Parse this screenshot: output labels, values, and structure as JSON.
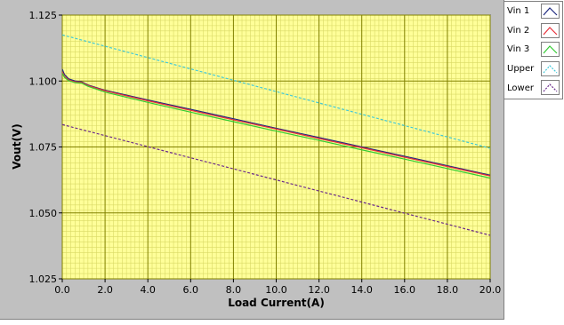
{
  "chart_data": {
    "type": "line",
    "xlabel": "Load Current(A)",
    "ylabel": "Vout(V)",
    "xlim": [
      0,
      20
    ],
    "ylim": [
      1.025,
      1.125
    ],
    "x_ticks": [
      "0.0",
      "2.0",
      "4.0",
      "6.0",
      "8.0",
      "10.0",
      "12.0",
      "14.0",
      "16.0",
      "18.0",
      "20.0"
    ],
    "y_ticks": [
      "1.025",
      "1.050",
      "1.075",
      "1.100",
      "1.125"
    ],
    "grid": true,
    "minor_grid": true,
    "legend_position": "right",
    "plot_background": "#ffff99",
    "major_grid_color": "#808000",
    "minor_grid_color": "#d9d966",
    "series": [
      {
        "name": "Vin 1",
        "color": "#1f2a80",
        "style": "solid",
        "x": [
          0,
          0.1,
          0.3,
          0.6,
          0.9,
          1.2,
          2,
          4,
          6,
          8,
          10,
          12,
          14,
          16,
          18,
          20
        ],
        "y": [
          1.1045,
          1.1025,
          1.1008,
          1.1,
          1.0997,
          1.0985,
          1.0965,
          1.0928,
          1.0893,
          1.0857,
          1.0821,
          1.0786,
          1.075,
          1.0715,
          1.0679,
          1.0643
        ]
      },
      {
        "name": "Vin 2",
        "color": "#e8303a",
        "style": "solid",
        "x": [
          0,
          0.1,
          0.3,
          0.6,
          0.9,
          1.2,
          2,
          4,
          6,
          8,
          10,
          12,
          14,
          16,
          18,
          20
        ],
        "y": [
          1.1035,
          1.1018,
          1.1004,
          1.0997,
          1.0995,
          1.0983,
          1.0963,
          1.0925,
          1.0889,
          1.0853,
          1.0818,
          1.0782,
          1.0747,
          1.0711,
          1.0676,
          1.064
        ]
      },
      {
        "name": "Vin 3",
        "color": "#33cc33",
        "style": "solid",
        "x": [
          0,
          0.1,
          0.3,
          0.6,
          0.9,
          1.2,
          2,
          4,
          6,
          8,
          10,
          12,
          14,
          16,
          18,
          20
        ],
        "y": [
          1.103,
          1.1014,
          1.1001,
          1.0994,
          1.0992,
          1.098,
          1.0958,
          1.0919,
          1.0882,
          1.0846,
          1.081,
          1.0775,
          1.0739,
          1.0704,
          1.0668,
          1.0632
        ]
      },
      {
        "name": "Upper",
        "color": "#40c8d8",
        "style": "dashed",
        "x": [
          0,
          20
        ],
        "y": [
          1.1175,
          1.0745
        ]
      },
      {
        "name": "Lower",
        "color": "#6a2a8a",
        "style": "dashed",
        "x": [
          0,
          20
        ],
        "y": [
          1.0835,
          1.0415
        ]
      }
    ]
  }
}
